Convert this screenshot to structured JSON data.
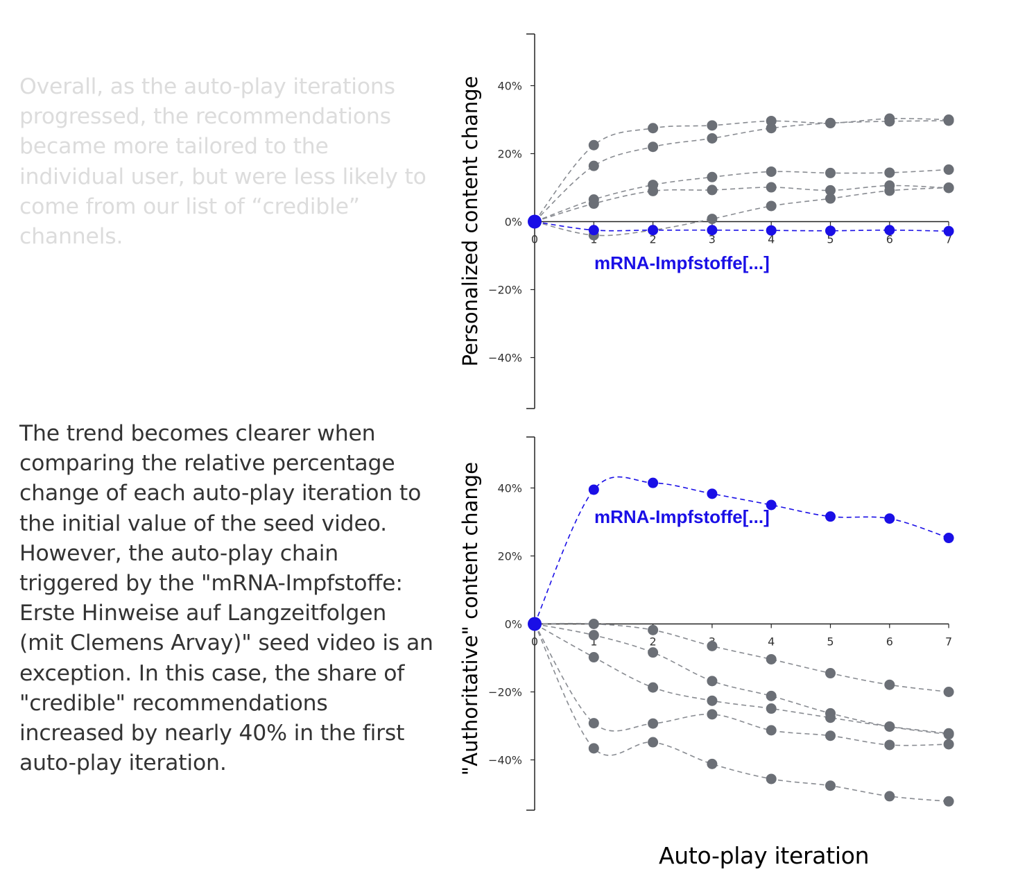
{
  "text": {
    "paragraph1": "Overall, as the auto-play iterations progressed, the recommendations became more tailored to the individual user, but were less likely to come from our list of “credible” channels.",
    "paragraph2": "The trend becomes clearer when comparing the relative percentage change of each auto-play iteration to the initial value of the seed video. However, the auto-play chain triggered by the \"mRNA-Impfstoffe: Erste Hinweise auf Langzeitfolgen (mit Clemens Arvay)\" seed video is an exception. In this case, the share of \"credible\" recommendations increased by nearly 40% in the first auto-play iteration."
  },
  "colors": {
    "highlight": "#1a0fe6",
    "other": "#6b6f76",
    "axis": "#222222"
  },
  "chart_data": [
    {
      "type": "line",
      "ylabel": "Personalized content change",
      "xlabel": "Auto-play iteration",
      "x": [
        0,
        1,
        2,
        3,
        4,
        5,
        6,
        7
      ],
      "ylim": [
        -55,
        55
      ],
      "yticks": [
        -40,
        -20,
        0,
        20,
        40
      ],
      "ytick_labels": [
        "−40%",
        "−20%",
        "0%",
        "20%",
        "40%"
      ],
      "xtick_labels": [
        "0",
        "1",
        "2",
        "3",
        "4",
        "5",
        "6",
        "7"
      ],
      "highlight_label": "mRNA-Impfstoffe[...]",
      "series": [
        {
          "highlight": true,
          "values": [
            0,
            -2.5,
            -2.5,
            -2.5,
            -2.6,
            -2.7,
            -2.5,
            -2.8
          ]
        },
        {
          "highlight": false,
          "values": [
            0,
            22.5,
            27.5,
            28.3,
            29.6,
            29.0,
            30.3,
            30.0
          ]
        },
        {
          "highlight": false,
          "values": [
            0,
            16.4,
            22.0,
            24.5,
            27.5,
            29.0,
            29.5,
            29.7
          ]
        },
        {
          "highlight": false,
          "values": [
            0,
            6.5,
            10.8,
            13.1,
            14.7,
            14.3,
            14.4,
            15.3
          ]
        },
        {
          "highlight": false,
          "values": [
            0,
            5.3,
            9.0,
            9.3,
            10.1,
            9.2,
            10.6,
            9.9
          ]
        },
        {
          "highlight": false,
          "values": [
            0,
            -4.0,
            -2.5,
            0.8,
            4.6,
            6.8,
            9.1,
            10.0
          ]
        }
      ]
    },
    {
      "type": "line",
      "ylabel": "\"Authoritative\" content change",
      "xlabel": "Auto-play iteration",
      "x": [
        0,
        1,
        2,
        3,
        4,
        5,
        6,
        7
      ],
      "ylim": [
        -55,
        55
      ],
      "yticks": [
        -40,
        -20,
        0,
        20,
        40
      ],
      "ytick_labels": [
        "−40%",
        "−20%",
        "0%",
        "20%",
        "40%"
      ],
      "xtick_labels": [
        "0",
        "1",
        "2",
        "3",
        "4",
        "5",
        "6",
        "7"
      ],
      "highlight_label": "mRNA-Impfstoffe[...]",
      "series": [
        {
          "highlight": true,
          "values": [
            0,
            39.5,
            41.5,
            38.3,
            35.0,
            31.6,
            31.0,
            25.3
          ]
        },
        {
          "highlight": false,
          "values": [
            0,
            0,
            -1.8,
            -6.5,
            -10.4,
            -14.5,
            -17.9,
            -20.0
          ]
        },
        {
          "highlight": false,
          "values": [
            0,
            -3.3,
            -8.4,
            -16.8,
            -21.2,
            -26.3,
            -30.2,
            -32.5
          ]
        },
        {
          "highlight": false,
          "values": [
            0,
            -9.8,
            -18.7,
            -22.6,
            -24.9,
            -27.6,
            -30.2,
            -32.2
          ]
        },
        {
          "highlight": false,
          "values": [
            0,
            -29.2,
            -29.3,
            -26.6,
            -31.3,
            -32.9,
            -35.6,
            -35.4
          ]
        },
        {
          "highlight": false,
          "values": [
            0,
            -36.6,
            -34.8,
            -41.2,
            -45.6,
            -47.6,
            -50.7,
            -52.2
          ]
        }
      ]
    }
  ]
}
